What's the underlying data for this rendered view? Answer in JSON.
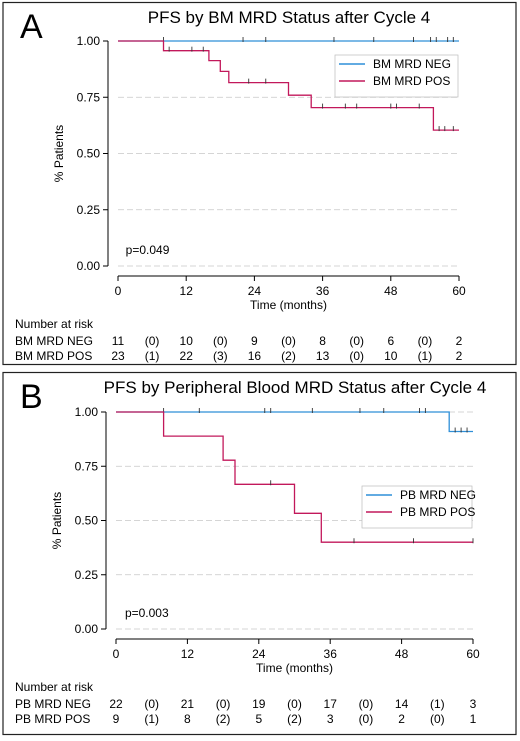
{
  "chart_data": [
    {
      "panel_label": "A",
      "type": "line",
      "step": true,
      "title": "PFS by BM MRD Status after Cycle 4",
      "xlabel": "Time (months)",
      "ylabel": "% Patients",
      "xlim": [
        0,
        60
      ],
      "ylim": [
        0,
        1
      ],
      "xticks": [
        0,
        12,
        24,
        36,
        48,
        60
      ],
      "yticks": [
        0,
        0.25,
        0.5,
        0.75,
        1
      ],
      "ytick_labels": [
        "0.00",
        "0.25",
        "0.50",
        "0.75",
        "1.00"
      ],
      "grid": "horizontal",
      "legend_position": "right",
      "annotation": "p=0.049",
      "series": [
        {
          "name": "BM MRD NEG",
          "color": "#2f8fd8",
          "steps": [
            [
              0,
              1.0
            ],
            [
              60,
              1.0
            ]
          ],
          "censored": [
            [
              8,
              1.0
            ],
            [
              22,
              1.0
            ],
            [
              26,
              1.0
            ],
            [
              38,
              1.0
            ],
            [
              45,
              1.0
            ],
            [
              52,
              1.0
            ],
            [
              55,
              1.0
            ],
            [
              56,
              1.0
            ],
            [
              58,
              1.0
            ],
            [
              59,
              1.0
            ]
          ]
        },
        {
          "name": "BM MRD POS",
          "color": "#c2185b",
          "steps": [
            [
              0,
              1.0
            ],
            [
              8,
              1.0
            ],
            [
              8,
              0.957
            ],
            [
              16,
              0.957
            ],
            [
              16,
              0.913
            ],
            [
              18,
              0.913
            ],
            [
              18,
              0.865
            ],
            [
              19.5,
              0.865
            ],
            [
              19.5,
              0.815
            ],
            [
              30,
              0.815
            ],
            [
              30,
              0.759
            ],
            [
              34,
              0.759
            ],
            [
              34,
              0.704
            ],
            [
              55.5,
              0.704
            ],
            [
              55.5,
              0.604
            ],
            [
              60,
              0.604
            ]
          ],
          "censored": [
            [
              9,
              0.957
            ],
            [
              13,
              0.957
            ],
            [
              15,
              0.957
            ],
            [
              23,
              0.815
            ],
            [
              26,
              0.815
            ],
            [
              36,
              0.704
            ],
            [
              40,
              0.704
            ],
            [
              42,
              0.704
            ],
            [
              48,
              0.704
            ],
            [
              49,
              0.704
            ],
            [
              53,
              0.704
            ],
            [
              56.5,
              0.604
            ],
            [
              57.5,
              0.604
            ],
            [
              59,
              0.604
            ]
          ]
        }
      ],
      "risk_table": {
        "heading": "Number at risk",
        "rows": [
          {
            "label": "BM MRD NEG",
            "counts": [
              "11",
              "(0)",
              "10",
              "(0)",
              "9",
              "(0)",
              "8",
              "(0)",
              "6",
              "(0)",
              "2"
            ]
          },
          {
            "label": "BM MRD POS",
            "counts": [
              "23",
              "(1)",
              "22",
              "(3)",
              "16",
              "(2)",
              "13",
              "(0)",
              "10",
              "(1)",
              "2"
            ]
          }
        ]
      }
    },
    {
      "panel_label": "B",
      "type": "line",
      "step": true,
      "title": "PFS by Peripheral Blood MRD Status after Cycle 4",
      "xlabel": "Time (months)",
      "ylabel": "% Patients",
      "xlim": [
        0,
        60
      ],
      "ylim": [
        0,
        1
      ],
      "xticks": [
        0,
        12,
        24,
        36,
        48,
        60
      ],
      "yticks": [
        0,
        0.25,
        0.5,
        0.75,
        1
      ],
      "ytick_labels": [
        "0.00",
        "0.25",
        "0.50",
        "0.75",
        "1.00"
      ],
      "grid": "horizontal",
      "legend_position": "right",
      "annotation": "p=0.003",
      "series": [
        {
          "name": "PB MRD NEG",
          "color": "#2f8fd8",
          "steps": [
            [
              0,
              1.0
            ],
            [
              56,
              1.0
            ],
            [
              56,
              0.91
            ],
            [
              60,
              0.91
            ]
          ],
          "censored": [
            [
              8,
              1.0
            ],
            [
              14,
              1.0
            ],
            [
              25,
              1.0
            ],
            [
              26,
              1.0
            ],
            [
              33,
              1.0
            ],
            [
              41,
              1.0
            ],
            [
              45,
              1.0
            ],
            [
              51,
              1.0
            ],
            [
              52,
              1.0
            ],
            [
              57,
              0.91
            ],
            [
              58,
              0.91
            ],
            [
              59,
              0.91
            ]
          ]
        },
        {
          "name": "PB MRD POS",
          "color": "#c2185b",
          "steps": [
            [
              0,
              1.0
            ],
            [
              8,
              1.0
            ],
            [
              8,
              0.889
            ],
            [
              18,
              0.889
            ],
            [
              18,
              0.778
            ],
            [
              20,
              0.778
            ],
            [
              20,
              0.667
            ],
            [
              30,
              0.667
            ],
            [
              30,
              0.533
            ],
            [
              34.5,
              0.533
            ],
            [
              34.5,
              0.4
            ],
            [
              60,
              0.4
            ]
          ],
          "censored": [
            [
              26,
              0.667
            ],
            [
              40,
              0.4
            ],
            [
              50,
              0.4
            ],
            [
              60,
              0.4
            ]
          ]
        }
      ],
      "risk_table": {
        "heading": "Number at risk",
        "rows": [
          {
            "label": "PB MRD NEG",
            "counts": [
              "22",
              "(0)",
              "21",
              "(0)",
              "19",
              "(0)",
              "17",
              "(0)",
              "14",
              "(1)",
              "3"
            ]
          },
          {
            "label": "PB MRD POS",
            "counts": [
              "9",
              "(1)",
              "8",
              "(2)",
              "5",
              "(2)",
              "3",
              "(0)",
              "2",
              "(0)",
              "1"
            ]
          }
        ]
      }
    }
  ]
}
